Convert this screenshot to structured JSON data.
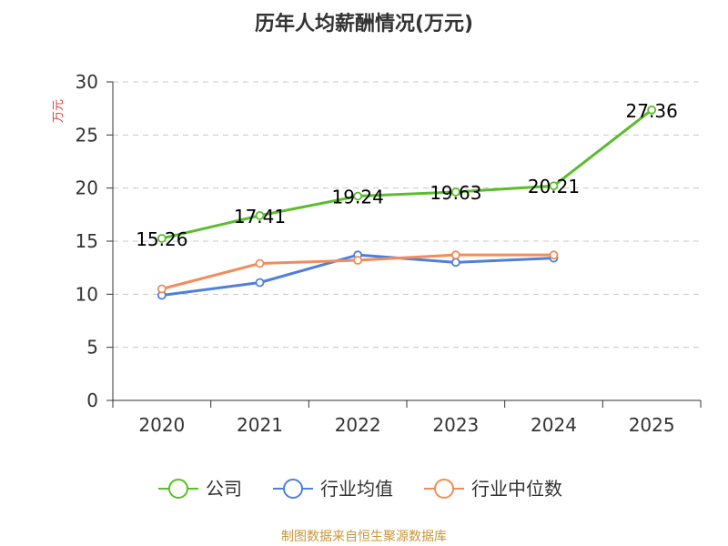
{
  "chart_data": {
    "type": "line",
    "title": "历年人均薪酬情况(万元)",
    "ylabel": "万元",
    "xlabel": "",
    "ylim": [
      0,
      30
    ],
    "yticks": [
      0,
      5,
      10,
      15,
      20,
      25,
      30
    ],
    "categories": [
      "2020",
      "2021",
      "2022",
      "2023",
      "2024",
      "2025"
    ],
    "grid": true,
    "legend_position": "bottom",
    "series": [
      {
        "name": "公司",
        "color": "#5bbd2b",
        "values": [
          15.26,
          17.41,
          19.24,
          19.63,
          20.21,
          27.36
        ],
        "labels": [
          "15.26",
          "17.41",
          "19.24",
          "19.63",
          "20.21",
          "27.36"
        ]
      },
      {
        "name": "行业均值",
        "color": "#4f7fdb",
        "values": [
          9.9,
          11.1,
          13.7,
          13.0,
          13.4,
          null
        ]
      },
      {
        "name": "行业中位数",
        "color": "#f28c5a",
        "values": [
          10.5,
          12.9,
          13.2,
          13.7,
          13.7,
          null
        ]
      }
    ],
    "source": "制图数据来自恒生聚源数据库"
  }
}
